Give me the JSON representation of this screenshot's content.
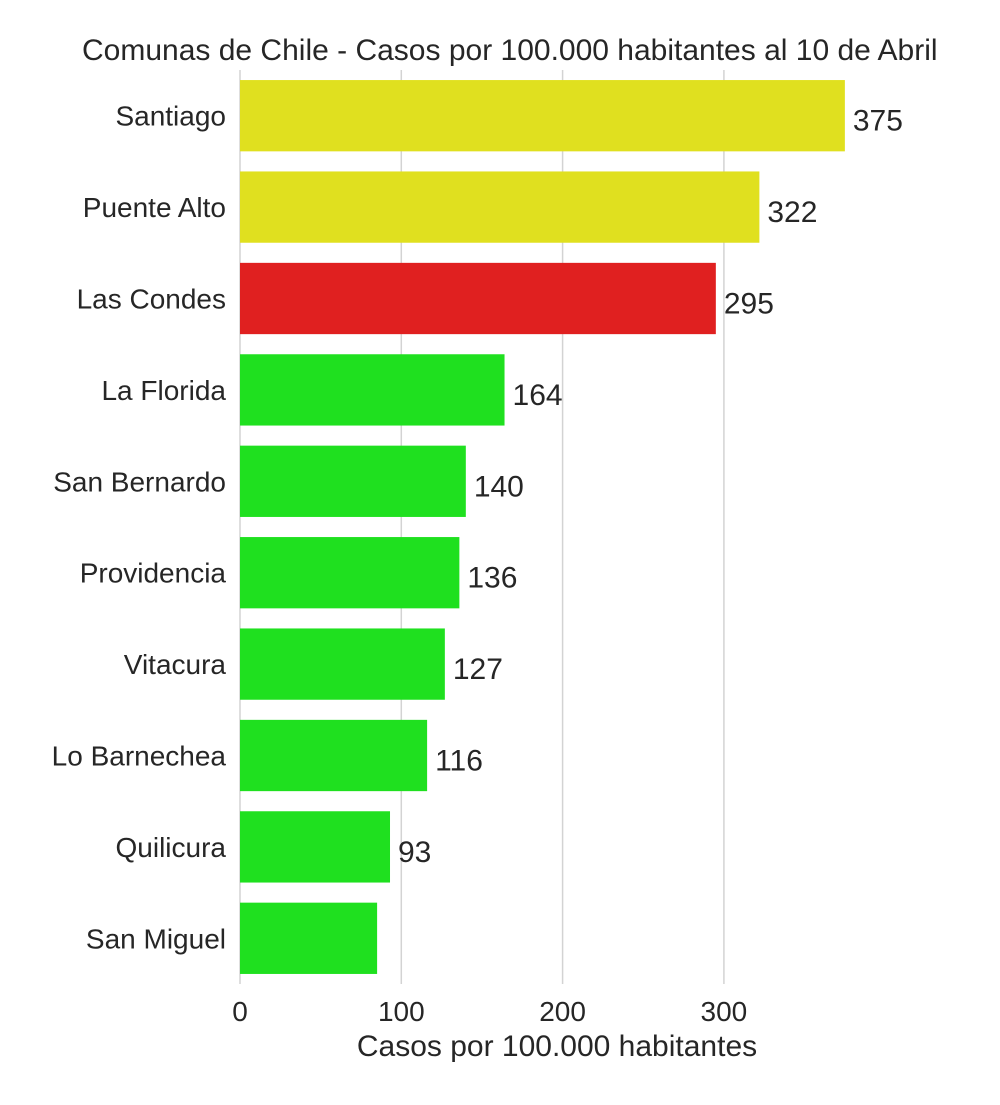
{
  "chart_data": {
    "type": "bar",
    "orientation": "horizontal",
    "title": "Comunas de Chile - Casos por 100.000 habitantes al 10 de Abril",
    "xlabel": "Casos por 100.000 habitantes",
    "ylabel": "",
    "xlim": [
      0,
      380
    ],
    "xticks": [
      0,
      100,
      200,
      300
    ],
    "grid": "vertical",
    "categories": [
      "Santiago",
      "Puente Alto",
      "Las Condes",
      "La Florida",
      "San Bernardo",
      "Providencia",
      "Vitacura",
      "Lo Barnechea",
      "Quilicura",
      "San Miguel"
    ],
    "values": [
      375,
      322,
      295,
      164,
      140,
      136,
      127,
      116,
      93,
      85
    ],
    "data_labels": [
      "375",
      "322",
      "295",
      "164",
      "140",
      "136",
      "127",
      "116",
      "93",
      ""
    ],
    "bar_colors": [
      "#e0e01f",
      "#e0e01f",
      "#e02020",
      "#1fe01f",
      "#1fe01f",
      "#1fe01f",
      "#1fe01f",
      "#1fe01f",
      "#1fe01f",
      "#1fe01f"
    ]
  }
}
